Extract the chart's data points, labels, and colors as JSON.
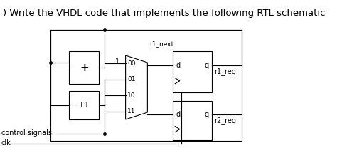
{
  "title": ") Write the VHDL code that implements the following RTL schematic",
  "title_fontsize": 10,
  "bg_color": "#ffffff",
  "line_color": "#000000",
  "fig_width": 4.74,
  "fig_height": 2.25,
  "dpi": 100,
  "adder_label": "+",
  "inc_label": "+1",
  "mux_labels": [
    "00",
    "01",
    "10",
    "11"
  ],
  "mux_sel_label": "1",
  "r1_next_label": "r1_next",
  "reg1_d_label": "d",
  "reg1_q_label": "q",
  "reg1_name": "r1_reg",
  "reg2_d_label": "d",
  "reg2_q_label": "q",
  "reg2_name": "r2_reg",
  "control_signals_label": "control signals",
  "clk_label": "clk"
}
